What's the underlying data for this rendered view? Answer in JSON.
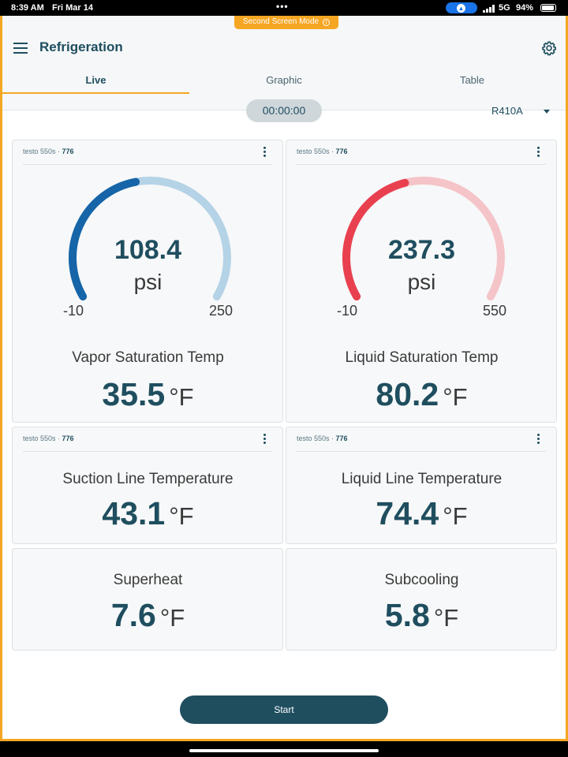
{
  "status_bar": {
    "time": "8:39 AM",
    "date": "Fri Mar 14",
    "network": "5G",
    "battery": "94%",
    "battery_level": 0.94
  },
  "banner": {
    "label": "Second Screen Mode",
    "icon": "info-icon"
  },
  "header": {
    "title": "Refrigeration",
    "menu_icon": "hamburger-menu-icon",
    "settings_icon": "gear-icon"
  },
  "tabs": [
    {
      "label": "Live",
      "active": true
    },
    {
      "label": "Graphic",
      "active": false
    },
    {
      "label": "Table",
      "active": false
    }
  ],
  "timer": "00:00:00",
  "refrigerant": {
    "selected": "R410A"
  },
  "colors": {
    "accent": "#f5a623",
    "primary": "#1f4e5f",
    "vapor_gauge_fill": "#1565a8",
    "vapor_gauge_track": "#b5d3e6",
    "liquid_gauge_fill": "#e8404f",
    "liquid_gauge_track": "#f5c4c8"
  },
  "cards": {
    "vapor": {
      "source": "testo 550s ·",
      "serial": "776",
      "gauge": {
        "value": "108.4",
        "unit": "psi",
        "min": "-10",
        "max": "250",
        "fraction": 0.456
      },
      "label": "Vapor Saturation Temp",
      "value": "35.5",
      "unit": "°F"
    },
    "liquid": {
      "source": "testo 550s ·",
      "serial": "776",
      "gauge": {
        "value": "237.3",
        "unit": "psi",
        "min": "-10",
        "max": "550",
        "fraction": 0.442
      },
      "label": "Liquid Saturation Temp",
      "value": "80.2",
      "unit": "°F"
    },
    "suction": {
      "source": "testo 550s ·",
      "serial": "776",
      "label": "Suction Line Temperature",
      "value": "43.1",
      "unit": "°F"
    },
    "liquid_line": {
      "source": "testo 550s ·",
      "serial": "776",
      "label": "Liquid Line Temperature",
      "value": "74.4",
      "unit": "°F"
    },
    "superheat": {
      "label": "Superheat",
      "value": "7.6",
      "unit": "°F"
    },
    "subcooling": {
      "label": "Subcooling",
      "value": "5.8",
      "unit": "°F"
    }
  },
  "start_button": {
    "label": "Start"
  }
}
